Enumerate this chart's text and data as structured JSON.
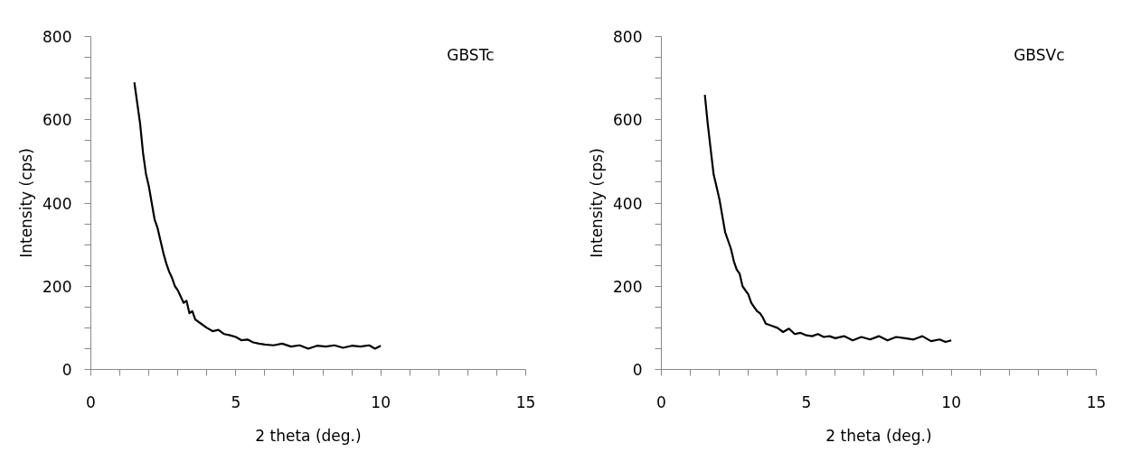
{
  "chart_data": [
    {
      "type": "line",
      "xlabel": "2 theta (deg.)",
      "ylabel": "Intensity (cps)",
      "annotations": [
        "GBSTc"
      ],
      "xlim": [
        0,
        15
      ],
      "ylim": [
        0,
        800
      ],
      "xticks": [
        0,
        {
          "value": 1,
          "label": null
        },
        {
          "value": 2,
          "label": null
        },
        {
          "value": 3,
          "label": null
        },
        {
          "value": 4,
          "label": null
        },
        5,
        {
          "value": 6,
          "label": null
        },
        {
          "value": 7,
          "label": null
        },
        {
          "value": 8,
          "label": null
        },
        {
          "value": 9,
          "label": null
        },
        10,
        {
          "value": 11,
          "label": null
        },
        {
          "value": 12,
          "label": null
        },
        {
          "value": 13,
          "label": null
        },
        {
          "value": 14,
          "label": null
        },
        15
      ],
      "yticks": [
        0,
        {
          "value": 50,
          "label": null
        },
        {
          "value": 100,
          "label": null
        },
        {
          "value": 150,
          "label": null
        },
        200,
        {
          "value": 250,
          "label": null
        },
        {
          "value": 300,
          "label": null
        },
        {
          "value": 350,
          "label": null
        },
        400,
        {
          "value": 450,
          "label": null
        },
        {
          "value": 500,
          "label": null
        },
        {
          "value": 550,
          "label": null
        },
        600,
        {
          "value": 650,
          "label": null
        },
        {
          "value": 700,
          "label": null
        },
        {
          "value": 750,
          "label": null
        },
        800
      ],
      "grid": false,
      "marker": "none",
      "line_style": "solid",
      "series": [
        {
          "color": "#000000",
          "x": [
            1.5,
            1.6,
            1.7,
            1.8,
            1.9,
            2.0,
            2.1,
            2.2,
            2.3,
            2.4,
            2.5,
            2.6,
            2.7,
            2.8,
            2.9,
            3.0,
            3.1,
            3.2,
            3.3,
            3.4,
            3.5,
            3.6,
            3.8,
            4.0,
            4.2,
            4.4,
            4.6,
            4.8,
            5.0,
            5.2,
            5.4,
            5.6,
            5.8,
            6.0,
            6.3,
            6.6,
            6.9,
            7.2,
            7.5,
            7.8,
            8.1,
            8.4,
            8.7,
            9.0,
            9.3,
            9.6,
            9.8,
            10.0
          ],
          "values": [
            690,
            640,
            590,
            520,
            470,
            440,
            400,
            360,
            340,
            310,
            280,
            255,
            235,
            220,
            200,
            190,
            175,
            160,
            165,
            135,
            140,
            120,
            110,
            100,
            92,
            95,
            85,
            82,
            78,
            70,
            72,
            65,
            62,
            60,
            58,
            62,
            55,
            58,
            50,
            57,
            55,
            58,
            52,
            57,
            55,
            58,
            50,
            57
          ]
        }
      ]
    },
    {
      "type": "line",
      "xlabel": "2 theta (deg.)",
      "ylabel": "Intensity (cps)",
      "annotations": [
        "GBSVc"
      ],
      "xlim": [
        0,
        15
      ],
      "ylim": [
        0,
        800
      ],
      "xticks": [
        0,
        {
          "value": 1,
          "label": null
        },
        {
          "value": 2,
          "label": null
        },
        {
          "value": 3,
          "label": null
        },
        {
          "value": 4,
          "label": null
        },
        5,
        {
          "value": 6,
          "label": null
        },
        {
          "value": 7,
          "label": null
        },
        {
          "value": 8,
          "label": null
        },
        {
          "value": 9,
          "label": null
        },
        10,
        {
          "value": 11,
          "label": null
        },
        {
          "value": 12,
          "label": null
        },
        {
          "value": 13,
          "label": null
        },
        {
          "value": 14,
          "label": null
        },
        15
      ],
      "yticks": [
        0,
        {
          "value": 50,
          "label": null
        },
        {
          "value": 100,
          "label": null
        },
        {
          "value": 150,
          "label": null
        },
        200,
        {
          "value": 250,
          "label": null
        },
        {
          "value": 300,
          "label": null
        },
        {
          "value": 350,
          "label": null
        },
        400,
        {
          "value": 450,
          "label": null
        },
        {
          "value": 500,
          "label": null
        },
        {
          "value": 550,
          "label": null
        },
        600,
        {
          "value": 650,
          "label": null
        },
        {
          "value": 700,
          "label": null
        },
        {
          "value": 750,
          "label": null
        },
        800
      ],
      "grid": false,
      "marker": "none",
      "line_style": "solid",
      "series": [
        {
          "color": "#000000",
          "x": [
            1.5,
            1.6,
            1.7,
            1.8,
            1.9,
            2.0,
            2.1,
            2.2,
            2.3,
            2.4,
            2.5,
            2.6,
            2.7,
            2.8,
            2.9,
            3.0,
            3.1,
            3.2,
            3.3,
            3.4,
            3.5,
            3.6,
            3.8,
            4.0,
            4.2,
            4.4,
            4.6,
            4.8,
            5.0,
            5.2,
            5.4,
            5.6,
            5.8,
            6.0,
            6.3,
            6.6,
            6.9,
            7.2,
            7.5,
            7.8,
            8.1,
            8.4,
            8.7,
            9.0,
            9.3,
            9.6,
            9.8,
            10.0
          ],
          "values": [
            660,
            590,
            530,
            470,
            440,
            410,
            370,
            330,
            310,
            290,
            260,
            240,
            230,
            200,
            190,
            180,
            160,
            150,
            140,
            135,
            125,
            110,
            105,
            100,
            90,
            98,
            85,
            88,
            82,
            80,
            85,
            78,
            80,
            75,
            80,
            70,
            78,
            72,
            80,
            70,
            78,
            75,
            72,
            80,
            68,
            72,
            66,
            70
          ]
        }
      ]
    }
  ]
}
